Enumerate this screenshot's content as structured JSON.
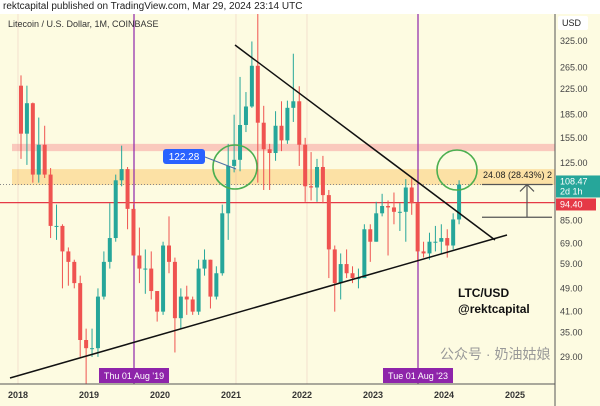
{
  "header": {
    "published": "rektcapital published on TradingView.com, Mar 29, 2024 23:14 UTC"
  },
  "symbol_title": "Litecoin / U.S. Dollar, 1M, COINBASE",
  "watermark": "公众号 · 奶油姑娘",
  "chart_data": {
    "type": "candlestick",
    "title": "Litecoin / U.S. Dollar, 1M, COINBASE",
    "y_scale": "log",
    "currency_label": "USD",
    "y_ticks": [
      "325.00",
      "265.00",
      "225.00",
      "185.00",
      "155.00",
      "125.00",
      "85.00",
      "69.00",
      "59.00",
      "49.00",
      "41.00",
      "35.00",
      "29.00"
    ],
    "x_ticks": [
      "2018",
      "2019",
      "2020",
      "2021",
      "2022",
      "2023",
      "2024",
      "2025"
    ],
    "start_month": "2018-01",
    "ohlc": [
      [
        231,
        250,
        132,
        160
      ],
      [
        160,
        231,
        126,
        202
      ],
      [
        202,
        203,
        110,
        117
      ],
      [
        117,
        181,
        110,
        147
      ],
      [
        147,
        170,
        114,
        117
      ],
      [
        117,
        123,
        72,
        79
      ],
      [
        79,
        93,
        71,
        79
      ],
      [
        79,
        80,
        49,
        65
      ],
      [
        65,
        67,
        50,
        60
      ],
      [
        60,
        61,
        49,
        51
      ],
      [
        51,
        54,
        29,
        33
      ],
      [
        33,
        36,
        22,
        31
      ],
      [
        31,
        36,
        29,
        31
      ],
      [
        31,
        49,
        29,
        46
      ],
      [
        46,
        65,
        45,
        60
      ],
      [
        60,
        94,
        57,
        72
      ],
      [
        72,
        117,
        70,
        112
      ],
      [
        112,
        146,
        107,
        122
      ],
      [
        122,
        124,
        77,
        90
      ],
      [
        90,
        93,
        63,
        63
      ],
      [
        63,
        78,
        51,
        57
      ],
      [
        57,
        66,
        47,
        57
      ],
      [
        57,
        65,
        45,
        48
      ],
      [
        48,
        48,
        38,
        41
      ],
      [
        41,
        70,
        40,
        68
      ],
      [
        68,
        85,
        55,
        60
      ],
      [
        60,
        62,
        30,
        39
      ],
      [
        39,
        49,
        36,
        46
      ],
      [
        46,
        50,
        40,
        45
      ],
      [
        45,
        46,
        40,
        41
      ],
      [
        41,
        61,
        40,
        57
      ],
      [
        57,
        66,
        54,
        61
      ],
      [
        61,
        61,
        42,
        46
      ],
      [
        46,
        58,
        45,
        55
      ],
      [
        55,
        93,
        54,
        87
      ],
      [
        87,
        148,
        71,
        125
      ],
      [
        125,
        185,
        119,
        131
      ],
      [
        131,
        247,
        120,
        171
      ],
      [
        171,
        220,
        162,
        197
      ],
      [
        197,
        324,
        195,
        269
      ],
      [
        269,
        412,
        110,
        174
      ],
      [
        174,
        198,
        104,
        142
      ],
      [
        142,
        148,
        104,
        138
      ],
      [
        138,
        190,
        130,
        170
      ],
      [
        170,
        205,
        140,
        152
      ],
      [
        152,
        206,
        148,
        195
      ],
      [
        195,
        295,
        175,
        205
      ],
      [
        205,
        230,
        125,
        147
      ],
      [
        147,
        155,
        95,
        107
      ],
      [
        107,
        139,
        96,
        106
      ],
      [
        106,
        132,
        95,
        124
      ],
      [
        124,
        135,
        94,
        100
      ],
      [
        100,
        104,
        53,
        66
      ],
      [
        66,
        68,
        41,
        51
      ],
      [
        51,
        64,
        45,
        59
      ],
      [
        59,
        66,
        53,
        55
      ],
      [
        55,
        58,
        51,
        53
      ],
      [
        53,
        57,
        49,
        53
      ],
      [
        53,
        80,
        53,
        77
      ],
      [
        77,
        80,
        60,
        70
      ],
      [
        70,
        95,
        70,
        87
      ],
      [
        87,
        101,
        85,
        92
      ],
      [
        92,
        96,
        63,
        91
      ],
      [
        91,
        102,
        80,
        88
      ],
      [
        88,
        94,
        76,
        88
      ],
      [
        88,
        113,
        70,
        106
      ],
      [
        106,
        115,
        86,
        94
      ],
      [
        94,
        94,
        60,
        65
      ],
      [
        65,
        70,
        62,
        64
      ],
      [
        64,
        75,
        61,
        70
      ],
      [
        70,
        79,
        65,
        70
      ],
      [
        70,
        80,
        64,
        72
      ],
      [
        72,
        77,
        62,
        68
      ],
      [
        68,
        87,
        66,
        83
      ],
      [
        83,
        112,
        80,
        108.47
      ]
    ],
    "last_price": {
      "value": "108.47",
      "countdown": "2d 1h",
      "color": "#26a69a"
    },
    "level_line": {
      "value": "94.40",
      "color": "#e53946"
    },
    "annotations": {
      "callout": "122.28",
      "measure": "24.08 (28.43%) 2",
      "logo_text": [
        "LTC/USD",
        "@rektcapital"
      ],
      "vertical_markers": [
        "Thu 01 Aug '19",
        "Tue 01 Aug '23"
      ],
      "resistance_zone": [
        140,
        148
      ],
      "support_zone": [
        108,
        122
      ]
    },
    "colors": {
      "up": "#26a69a",
      "down": "#ef5350",
      "marker": "#8e24aa",
      "circle": "#4caf50",
      "callout": "#2962ff"
    }
  }
}
